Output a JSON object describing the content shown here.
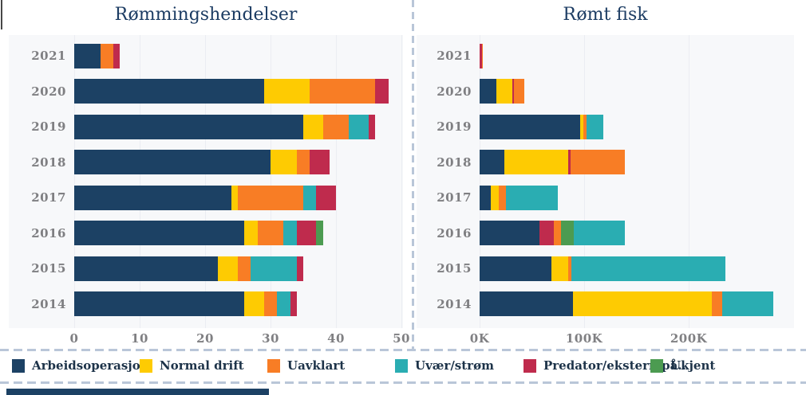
{
  "page": {
    "background": "#ffffff"
  },
  "colors": {
    "arbeidsoperasjon": "#1c4164",
    "normal_drift": "#fecb02",
    "uavklart": "#f87d25",
    "uvaer_strom": "#2aadb2",
    "predator": "#bf2b4d",
    "ukjent": "#4c9b51"
  },
  "legend": {
    "items": [
      {
        "key": "arbeidsoperasjon",
        "label": "Arbeidsoperasjon",
        "color": "#1c4164"
      },
      {
        "key": "normal_drift",
        "label": "Normal drift",
        "color": "#fecb02"
      },
      {
        "key": "uavklart",
        "label": "Uavklart",
        "color": "#f87d25"
      },
      {
        "key": "uvaer_strom",
        "label": "Uvær/strøm",
        "color": "#2aadb2"
      },
      {
        "key": "predator",
        "label": "Predator/ekstern på..",
        "color": "#bf2b4d"
      },
      {
        "key": "ukjent",
        "label": "Ukjent",
        "color": "#4c9b51"
      }
    ]
  },
  "chart_data": [
    {
      "type": "bar",
      "orientation": "horizontal",
      "stacked": true,
      "title": "Rømmingshendelser",
      "xlabel": "",
      "ylabel": "",
      "xlim": [
        0,
        50
      ],
      "grid": true,
      "x_ticks": [
        {
          "value": 0,
          "label": "0"
        },
        {
          "value": 10,
          "label": "10"
        },
        {
          "value": 20,
          "label": "20"
        },
        {
          "value": 30,
          "label": "30"
        },
        {
          "value": 40,
          "label": "40"
        },
        {
          "value": 50,
          "label": "50"
        }
      ],
      "categories": [
        "2021",
        "2020",
        "2019",
        "2018",
        "2017",
        "2016",
        "2015",
        "2014"
      ],
      "series_names": [
        "Arbeidsoperasjon",
        "Normal drift",
        "Uavklart",
        "Uvær/strøm",
        "Predator/ekstern på..",
        "Ukjent"
      ],
      "rows": [
        {
          "year": "2021",
          "segments": [
            {
              "key": "arbeidsoperasjon",
              "value": 4
            },
            {
              "key": "uavklart",
              "value": 2
            },
            {
              "key": "predator",
              "value": 1
            }
          ]
        },
        {
          "year": "2020",
          "segments": [
            {
              "key": "arbeidsoperasjon",
              "value": 29
            },
            {
              "key": "normal_drift",
              "value": 7
            },
            {
              "key": "uavklart",
              "value": 10
            },
            {
              "key": "predator",
              "value": 2
            }
          ]
        },
        {
          "year": "2019",
          "segments": [
            {
              "key": "arbeidsoperasjon",
              "value": 35
            },
            {
              "key": "normal_drift",
              "value": 3
            },
            {
              "key": "uavklart",
              "value": 4
            },
            {
              "key": "uvaer_strom",
              "value": 3
            },
            {
              "key": "predator",
              "value": 1
            }
          ]
        },
        {
          "year": "2018",
          "segments": [
            {
              "key": "arbeidsoperasjon",
              "value": 30
            },
            {
              "key": "normal_drift",
              "value": 4
            },
            {
              "key": "uavklart",
              "value": 2
            },
            {
              "key": "predator",
              "value": 3
            }
          ]
        },
        {
          "year": "2017",
          "segments": [
            {
              "key": "arbeidsoperasjon",
              "value": 24
            },
            {
              "key": "normal_drift",
              "value": 1
            },
            {
              "key": "uavklart",
              "value": 10
            },
            {
              "key": "uvaer_strom",
              "value": 2
            },
            {
              "key": "predator",
              "value": 3
            }
          ]
        },
        {
          "year": "2016",
          "segments": [
            {
              "key": "arbeidsoperasjon",
              "value": 26
            },
            {
              "key": "normal_drift",
              "value": 2
            },
            {
              "key": "uavklart",
              "value": 4
            },
            {
              "key": "uvaer_strom",
              "value": 2
            },
            {
              "key": "predator",
              "value": 3
            },
            {
              "key": "ukjent",
              "value": 1
            }
          ]
        },
        {
          "year": "2015",
          "segments": [
            {
              "key": "arbeidsoperasjon",
              "value": 22
            },
            {
              "key": "normal_drift",
              "value": 3
            },
            {
              "key": "uavklart",
              "value": 2
            },
            {
              "key": "uvaer_strom",
              "value": 7
            },
            {
              "key": "predator",
              "value": 1
            }
          ]
        },
        {
          "year": "2014",
          "segments": [
            {
              "key": "arbeidsoperasjon",
              "value": 26
            },
            {
              "key": "normal_drift",
              "value": 3
            },
            {
              "key": "uavklart",
              "value": 2
            },
            {
              "key": "uvaer_strom",
              "value": 2
            },
            {
              "key": "predator",
              "value": 1
            }
          ]
        }
      ]
    },
    {
      "type": "bar",
      "orientation": "horizontal",
      "stacked": true,
      "title": "Rømt fisk",
      "xlabel": "",
      "ylabel": "",
      "xlim": [
        0,
        300
      ],
      "values_unit": "thousands of fish (K)",
      "grid": true,
      "x_ticks": [
        {
          "value": 0,
          "label": "0K"
        },
        {
          "value": 100,
          "label": "100K"
        },
        {
          "value": 200,
          "label": "200K"
        }
      ],
      "categories": [
        "2021",
        "2020",
        "2019",
        "2018",
        "2017",
        "2016",
        "2015",
        "2014"
      ],
      "series_names": [
        "Arbeidsoperasjon",
        "Normal drift",
        "Uavklart",
        "Uvær/strøm",
        "Predator/ekstern på..",
        "Ukjent"
      ],
      "rows": [
        {
          "year": "2021",
          "segments": [
            {
              "key": "predator",
              "value": 2
            },
            {
              "key": "uavklart",
              "value": 1
            }
          ]
        },
        {
          "year": "2020",
          "segments": [
            {
              "key": "arbeidsoperasjon",
              "value": 16
            },
            {
              "key": "normal_drift",
              "value": 15
            },
            {
              "key": "predator",
              "value": 2
            },
            {
              "key": "uavklart",
              "value": 10
            }
          ]
        },
        {
          "year": "2019",
          "segments": [
            {
              "key": "arbeidsoperasjon",
              "value": 96
            },
            {
              "key": "normal_drift",
              "value": 3
            },
            {
              "key": "uavklart",
              "value": 3
            },
            {
              "key": "uvaer_strom",
              "value": 16
            }
          ]
        },
        {
          "year": "2018",
          "segments": [
            {
              "key": "arbeidsoperasjon",
              "value": 24
            },
            {
              "key": "normal_drift",
              "value": 61
            },
            {
              "key": "predator",
              "value": 2
            },
            {
              "key": "uavklart",
              "value": 52
            }
          ]
        },
        {
          "year": "2017",
          "segments": [
            {
              "key": "arbeidsoperasjon",
              "value": 11
            },
            {
              "key": "normal_drift",
              "value": 7
            },
            {
              "key": "uavklart",
              "value": 7
            },
            {
              "key": "uvaer_strom",
              "value": 50
            }
          ]
        },
        {
          "year": "2016",
          "segments": [
            {
              "key": "arbeidsoperasjon",
              "value": 57
            },
            {
              "key": "predator",
              "value": 14
            },
            {
              "key": "uavklart",
              "value": 7
            },
            {
              "key": "ukjent",
              "value": 12
            },
            {
              "key": "uvaer_strom",
              "value": 49
            }
          ]
        },
        {
          "year": "2015",
          "segments": [
            {
              "key": "arbeidsoperasjon",
              "value": 69
            },
            {
              "key": "normal_drift",
              "value": 16
            },
            {
              "key": "uavklart",
              "value": 3
            },
            {
              "key": "uvaer_strom",
              "value": 147
            }
          ]
        },
        {
          "year": "2014",
          "segments": [
            {
              "key": "arbeidsoperasjon",
              "value": 89
            },
            {
              "key": "normal_drift",
              "value": 133
            },
            {
              "key": "uavklart",
              "value": 10
            },
            {
              "key": "uvaer_strom",
              "value": 49
            }
          ]
        }
      ]
    }
  ]
}
